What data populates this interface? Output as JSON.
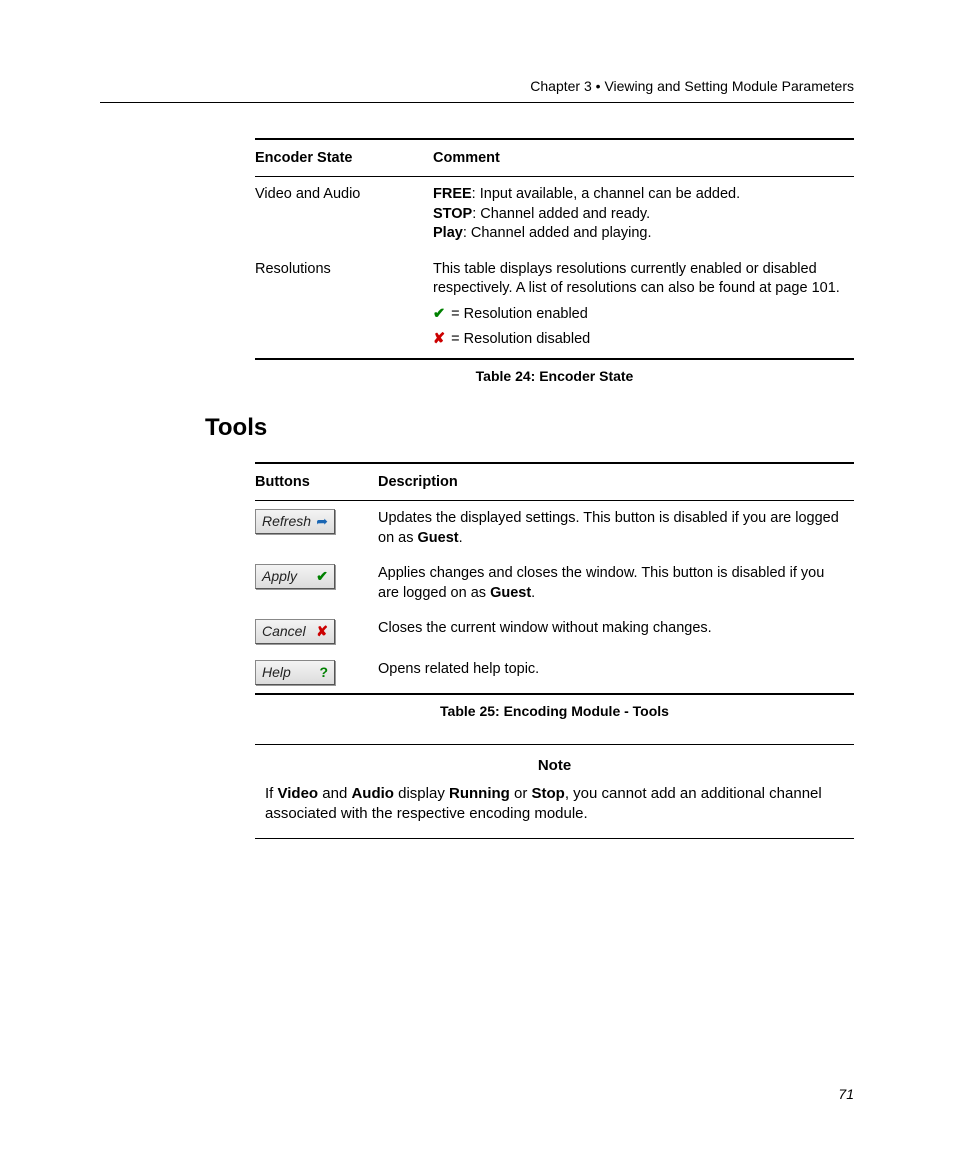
{
  "header": {
    "chapter": "Chapter 3",
    "bullet": "•",
    "title": "Viewing and Setting Module Parameters"
  },
  "page_number": "71",
  "encoder_table": {
    "headers": {
      "col1": "Encoder State",
      "col2": "Comment"
    },
    "rows": {
      "r1": {
        "state": "Video and Audio",
        "free_label": "FREE",
        "free_text": ": Input available, a channel can be added.",
        "stop_label": "STOP",
        "stop_text": ": Channel added and ready.",
        "play_label": "Play",
        "play_text": ": Channel added and playing."
      },
      "r2": {
        "state": "Resolutions",
        "desc": "This table displays resolutions currently enabled or disabled respectively. A list of resolutions can also be found at page 101.",
        "enabled_text": " = Resolution enabled",
        "disabled_text": " = Resolution disabled"
      }
    },
    "caption": "Table 24: Encoder State"
  },
  "tools_heading": "Tools",
  "tools_table": {
    "headers": {
      "col1": "Buttons",
      "col2": "Description"
    },
    "rows": {
      "refresh": {
        "label": "Refresh",
        "desc_pre": "Updates the displayed settings. This button is disabled if you are logged on as ",
        "desc_bold": "Guest",
        "desc_post": "."
      },
      "apply": {
        "label": "Apply",
        "desc_pre": "Applies changes and closes the window. This button is disabled if you are logged on as ",
        "desc_bold": "Guest",
        "desc_post": "."
      },
      "cancel": {
        "label": "Cancel",
        "desc": "Closes the current window without making changes."
      },
      "help": {
        "label": "Help",
        "desc": "Opens related help topic."
      }
    },
    "caption": "Table  25: Encoding Module - Tools"
  },
  "note": {
    "title": "Note",
    "t1": "If ",
    "b1": "Video",
    "t2": " and ",
    "b2": "Audio",
    "t3": " display ",
    "b3": "Running",
    "t4": " or ",
    "b4": "Stop",
    "t5": ", you cannot add an additional channel associated with the respective encoding module."
  },
  "icons": {
    "check": "✔",
    "x": "✘",
    "arrow": "➦",
    "question": "?"
  }
}
